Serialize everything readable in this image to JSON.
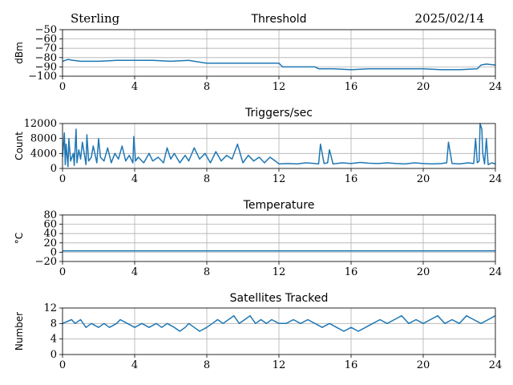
{
  "header": {
    "station": "Sterling",
    "date": "2025/02/14"
  },
  "chart_data": [
    {
      "type": "line",
      "title": "Threshold",
      "xlabel": "",
      "ylabel": "dBm",
      "xlim": [
        0,
        24
      ],
      "ylim": [
        -100,
        -50
      ],
      "x_ticks": [
        "0",
        "4",
        "8",
        "12",
        "16",
        "20",
        "24"
      ],
      "y_ticks": [
        "−50",
        "−60",
        "−70",
        "−80",
        "−90",
        "−100"
      ],
      "grid": true,
      "series": [
        {
          "color": "#1f77b4",
          "x": [
            0,
            0.3,
            0.6,
            1,
            2,
            3,
            4,
            5,
            6,
            7,
            7.3,
            8,
            9,
            10,
            11,
            12,
            12.2,
            12.5,
            13,
            14,
            14.2,
            15,
            16,
            17,
            18,
            19,
            20,
            21,
            22,
            23,
            23.2,
            23.5,
            24
          ],
          "values": [
            -84,
            -82,
            -83,
            -84,
            -84,
            -83,
            -83,
            -83,
            -84,
            -83,
            -84,
            -86,
            -86,
            -86,
            -86,
            -86,
            -90,
            -90,
            -90,
            -90,
            -92,
            -92,
            -93,
            -92,
            -92,
            -92,
            -92,
            -93,
            -93,
            -92,
            -88,
            -87,
            -88
          ]
        }
      ]
    },
    {
      "type": "line",
      "title": "Triggers/sec",
      "xlabel": "",
      "ylabel": "Count",
      "xlim": [
        0,
        24
      ],
      "ylim": [
        0,
        12000
      ],
      "x_ticks": [
        "0",
        "4",
        "8",
        "12",
        "16",
        "20",
        "24"
      ],
      "y_ticks": [
        "12000",
        "8000",
        "4000",
        "0"
      ],
      "grid": true,
      "series": [
        {
          "color": "#1f77b4",
          "x": [
            0,
            0.1,
            0.15,
            0.2,
            0.3,
            0.35,
            0.45,
            0.6,
            0.65,
            0.75,
            0.8,
            0.9,
            1,
            1.1,
            1.3,
            1.35,
            1.45,
            1.6,
            1.7,
            1.9,
            2,
            2.1,
            2.3,
            2.5,
            2.7,
            2.9,
            3.1,
            3.3,
            3.5,
            3.7,
            3.9,
            3.95,
            4.05,
            4.2,
            4.5,
            4.8,
            5,
            5.3,
            5.6,
            5.8,
            6,
            6.2,
            6.5,
            6.8,
            7,
            7.3,
            7.6,
            7.9,
            8.2,
            8.5,
            8.8,
            9.1,
            9.4,
            9.7,
            10,
            10.3,
            10.6,
            10.9,
            11.2,
            11.5,
            11.8,
            12,
            12.5,
            13,
            13.5,
            14,
            14.2,
            14.3,
            14.5,
            14.7,
            14.8,
            15,
            15.5,
            16,
            16.5,
            17,
            17.5,
            18,
            18.5,
            19,
            19.5,
            20,
            20.5,
            21,
            21.3,
            21.4,
            21.6,
            22,
            22.5,
            22.8,
            22.9,
            23,
            23.1,
            23.15,
            23.25,
            23.3,
            23.4,
            23.5,
            23.6,
            23.8,
            24
          ],
          "values": [
            3000,
            9500,
            1000,
            6500,
            500,
            8000,
            2000,
            4000,
            800,
            10500,
            1500,
            5000,
            2500,
            7000,
            1000,
            9000,
            2000,
            3000,
            6000,
            1500,
            8000,
            3000,
            2000,
            5500,
            1500,
            4000,
            2500,
            6000,
            2000,
            3500,
            1500,
            8500,
            2000,
            3000,
            1500,
            4000,
            2000,
            3000,
            1500,
            5500,
            2500,
            4000,
            1500,
            3500,
            2000,
            5500,
            2500,
            4000,
            1500,
            4500,
            2000,
            3500,
            2500,
            6500,
            1500,
            3500,
            2000,
            3000,
            1500,
            3000,
            2000,
            1200,
            1300,
            1200,
            1500,
            1300,
            1200,
            6500,
            1300,
            1500,
            5000,
            1200,
            1500,
            1300,
            1600,
            1400,
            1300,
            1500,
            1300,
            1200,
            1500,
            1300,
            1200,
            1300,
            1500,
            7000,
            1300,
            1200,
            1500,
            1300,
            8000,
            1500,
            2000,
            12000,
            10500,
            4000,
            1200,
            8000,
            1000,
            1500,
            1200
          ]
        }
      ]
    },
    {
      "type": "line",
      "title": "Temperature",
      "xlabel": "",
      "ylabel": "°C",
      "xlim": [
        0,
        24
      ],
      "ylim": [
        -20,
        80
      ],
      "x_ticks": [
        "0",
        "4",
        "8",
        "12",
        "16",
        "20",
        "24"
      ],
      "y_ticks": [
        "80",
        "60",
        "40",
        "20",
        "0",
        "−20"
      ],
      "grid": true,
      "series": [
        {
          "color": "#1f77b4",
          "x": [
            0,
            24
          ],
          "values": [
            3,
            3
          ]
        }
      ]
    },
    {
      "type": "line",
      "title": "Satellites Tracked",
      "xlabel": "",
      "ylabel": "Number",
      "xlim": [
        0,
        24
      ],
      "ylim": [
        0,
        12
      ],
      "x_ticks": [
        "0",
        "4",
        "8",
        "12",
        "16",
        "20",
        "24"
      ],
      "y_ticks": [
        "12",
        "8",
        "4",
        "0"
      ],
      "grid": true,
      "series": [
        {
          "color": "#1f77b4",
          "x": [
            0,
            0.5,
            0.7,
            1,
            1.3,
            1.6,
            2,
            2.3,
            2.6,
            3,
            3.2,
            3.6,
            4,
            4.4,
            4.8,
            5.2,
            5.5,
            5.8,
            6.2,
            6.5,
            6.8,
            7,
            7.3,
            7.6,
            8,
            8.3,
            8.6,
            8.9,
            9.2,
            9.5,
            9.8,
            10.1,
            10.4,
            10.7,
            11,
            11.3,
            11.6,
            12,
            12.4,
            12.8,
            13.2,
            13.6,
            14,
            14.4,
            14.8,
            15.2,
            15.6,
            16,
            16.4,
            16.8,
            17.2,
            17.6,
            18,
            18.4,
            18.8,
            19.2,
            19.6,
            20,
            20.4,
            20.8,
            21.2,
            21.6,
            22,
            22.4,
            22.8,
            23.2,
            23.6,
            24
          ],
          "values": [
            8,
            9,
            8,
            9,
            7,
            8,
            7,
            8,
            7,
            8,
            9,
            8,
            7,
            8,
            7,
            8,
            7,
            8,
            7,
            6,
            7,
            8,
            7,
            6,
            7,
            8,
            9,
            8,
            9,
            10,
            8,
            9,
            10,
            8,
            9,
            8,
            9,
            8,
            8,
            9,
            8,
            9,
            8,
            7,
            8,
            7,
            6,
            7,
            6,
            7,
            8,
            9,
            8,
            9,
            10,
            8,
            9,
            8,
            9,
            10,
            8,
            9,
            8,
            10,
            9,
            8,
            9,
            10
          ]
        }
      ]
    }
  ]
}
